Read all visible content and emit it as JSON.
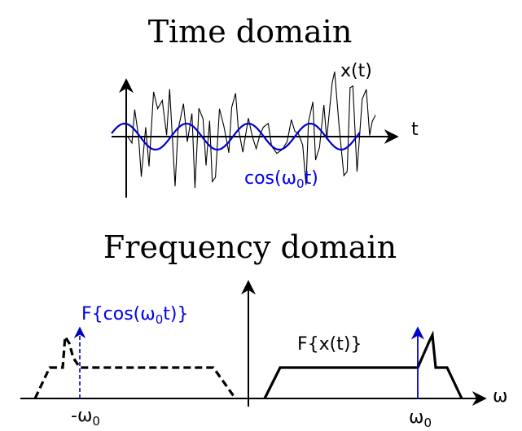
{
  "time_domain": {
    "title": "Time domain",
    "signal_label": "x(t)",
    "axis_label": "t",
    "cos_label_prefix": "cos(ω",
    "cos_label_subscript": "0",
    "cos_label_suffix": "t)"
  },
  "frequency_domain": {
    "title": "Frequency domain",
    "axis_label": "ω",
    "spectrum_label": "F{x(t)}",
    "cos_spectrum_label_prefix": "F{cos(ω",
    "cos_spectrum_label_subscript": "0",
    "cos_spectrum_label_suffix": "t)}",
    "neg_freq_label_prefix": "-ω",
    "neg_freq_label_subscript": "0",
    "pos_freq_label_prefix": "ω",
    "pos_freq_label_subscript": "0"
  },
  "colors": {
    "signal": "#000000",
    "cosine": "#0000cc",
    "text_blue": "#0000ee"
  }
}
